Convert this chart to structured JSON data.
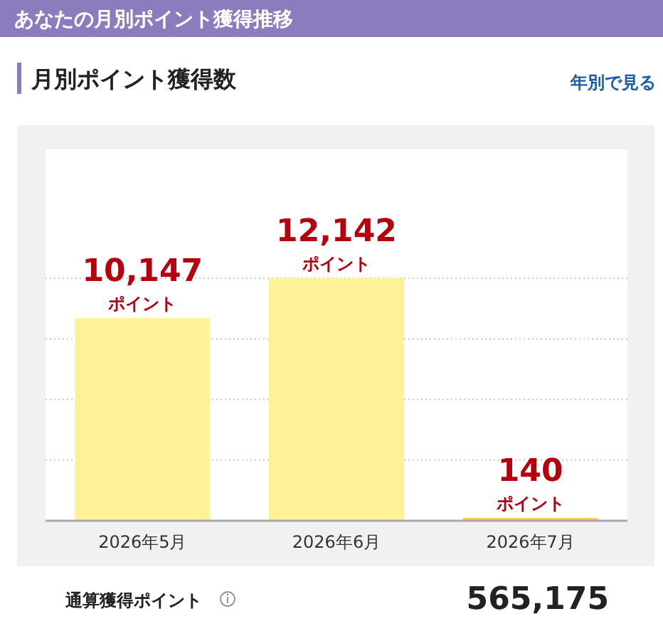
{
  "chart_data": {
    "type": "bar",
    "title": "あなたの月別ポイント獲得推移",
    "subtitle": "月別ポイント獲得数",
    "categories": [
      "2026年5月",
      "2026年6月",
      "2026年7月"
    ],
    "values": [
      10147,
      12142,
      140
    ],
    "colors": [
      "#fff195",
      "#fff195",
      "#f7c948"
    ],
    "value_labels": [
      "10,147\nポイント",
      "12,142\nポイント",
      "140\nポイント"
    ],
    "ylim": [
      0,
      18600
    ],
    "yticks": [
      {
        "value": 3036,
        "label": null
      },
      {
        "value": 6071,
        "label": null
      },
      {
        "value": 9107,
        "label": null
      },
      {
        "value": 12142,
        "label": null
      }
    ],
    "grid": "y",
    "tick_labels": "x",
    "annotations": [
      "年別で見る",
      "通算獲得ポイント",
      "565,175"
    ]
  }
}
